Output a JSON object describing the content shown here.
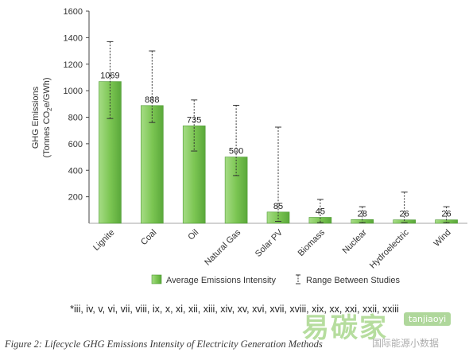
{
  "chart_data": {
    "type": "bar",
    "categories": [
      "Lignite",
      "Coal",
      "Oil",
      "Natural Gas",
      "Solar PV",
      "Biomass",
      "Nuclear",
      "Hydroelectric",
      "Wind"
    ],
    "values": [
      1069,
      888,
      735,
      500,
      85,
      45,
      28,
      26,
      26
    ],
    "range_low": [
      790,
      760,
      545,
      360,
      15,
      5,
      5,
      5,
      5
    ],
    "range_high": [
      1370,
      1300,
      930,
      890,
      725,
      180,
      125,
      235,
      125
    ],
    "series": [
      {
        "name": "Average Emissions Intensity",
        "values": [
          1069,
          888,
          735,
          500,
          85,
          45,
          28,
          26,
          26
        ]
      }
    ],
    "error_bar_label": "Range Between Studies",
    "yticks": [
      200,
      400,
      600,
      800,
      1000,
      1200,
      1400,
      1600
    ],
    "ylim": [
      0,
      1600
    ],
    "ylabel_line1": "GHG Emissions",
    "ylabel_line2": "(Tonnes CO2e/GWh)",
    "title": "",
    "xlabel": "",
    "legend_position": "bottom",
    "grid": false,
    "bar_color": "#7cc653",
    "bar_edge_color": "#4e9a34"
  },
  "footnote": "*iii, iv, v, vi, vii, viii, ix, x, xi, xii, xiii, xiv, xv, xvi, xvii, xviii, xix, xx, xxi, xxii, xxiii",
  "caption": "Figure 2: Lifecycle GHG Emissions Intensity of Electricity Generation Methods",
  "watermark": {
    "big": "易碳家",
    "badge": "tanjiaoyi",
    "small": "国际能源小数据"
  }
}
